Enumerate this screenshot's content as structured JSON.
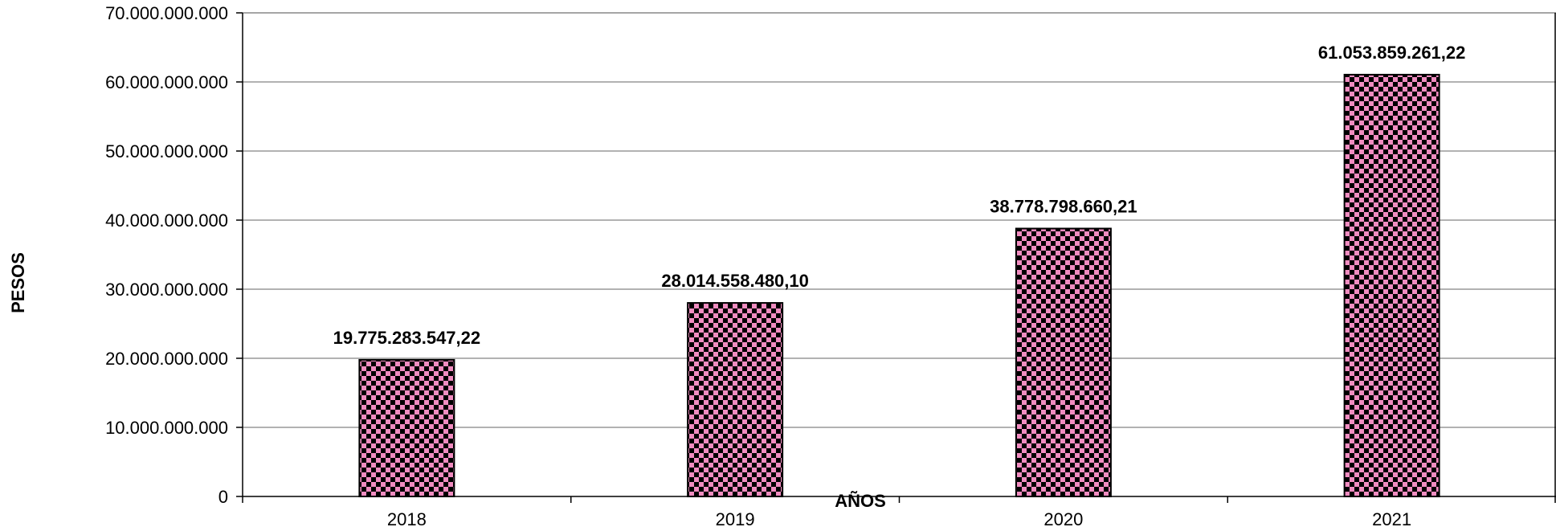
{
  "chart_data": {
    "type": "bar",
    "title": "",
    "xlabel": "AÑOS",
    "ylabel": "PESOS",
    "categories": [
      "2018",
      "2019",
      "2020",
      "2021"
    ],
    "values": [
      19775283547.22,
      28014558480.1,
      38778798660.21,
      61053859261.22
    ],
    "value_labels": [
      "19.775.283.547,22",
      "28.014.558.480,10",
      "38.778.798.660,21",
      "61.053.859.261,22"
    ],
    "ylim": [
      0,
      70000000000
    ],
    "yticks": [
      0,
      10000000000,
      20000000000,
      30000000000,
      40000000000,
      50000000000,
      60000000000,
      70000000000
    ],
    "ytick_labels": [
      "0",
      "10.000.000.000",
      "20.000.000.000",
      "30.000.000.000",
      "40.000.000.000",
      "50.000.000.000",
      "60.000.000.000",
      "70.000.000.000"
    ],
    "grid": true,
    "legend": "none",
    "colors": {
      "bar_fill_pink": "#f08cc0",
      "bar_fill_dark": "#000000",
      "gridline": "#999999",
      "axis": "#000000"
    }
  }
}
